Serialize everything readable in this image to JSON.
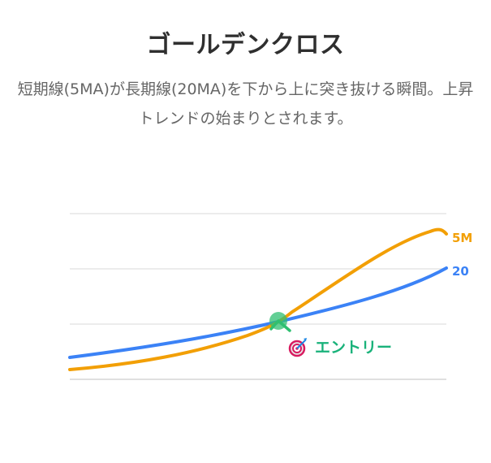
{
  "title": "ゴールデンクロス",
  "description": "短期線(5MA)が長期線(20MA)を下から上に突き抜ける瞬間。上昇トレンドの始まりとされます。",
  "colors": {
    "short_line": "#f29f05",
    "long_line": "#3b82f6",
    "cross_marker": "#2fbf71",
    "entry_text": "#19b27a",
    "grid": "#e6e6e6"
  },
  "chart_data": {
    "type": "line",
    "series": [
      {
        "name": "5MA",
        "label": "5M",
        "color": "#f29f05"
      },
      {
        "name": "20MA",
        "label": "20",
        "color": "#3b82f6"
      }
    ],
    "annotation": {
      "icon": "target-icon",
      "label": "エントリー"
    },
    "grid": true
  }
}
